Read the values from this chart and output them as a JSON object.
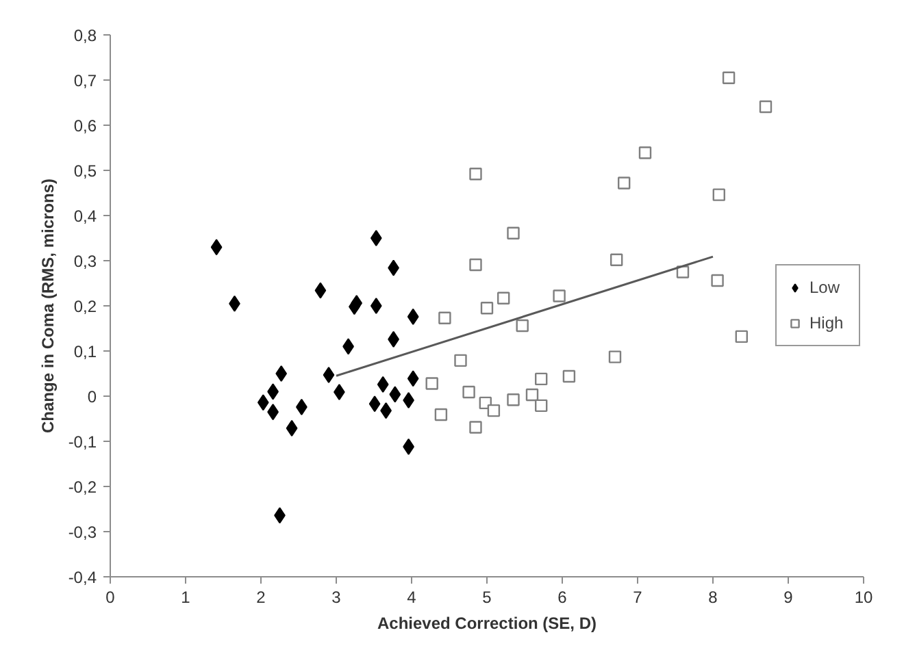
{
  "chart_data": {
    "type": "scatter",
    "xlabel": "Achieved Correction (SE, D)",
    "ylabel": "Change in Coma (RMS, microns)",
    "xlim": [
      0,
      10
    ],
    "xticks": [
      0,
      1,
      2,
      3,
      4,
      5,
      6,
      7,
      8,
      9,
      10
    ],
    "ylim": [
      -0.4,
      0.8
    ],
    "yticks": [
      {
        "value": -0.4,
        "label": "-0,4"
      },
      {
        "value": -0.3,
        "label": "-0,3"
      },
      {
        "value": -0.2,
        "label": "-0,2"
      },
      {
        "value": -0.1,
        "label": "-0,1"
      },
      {
        "value": 0,
        "label": "0"
      },
      {
        "value": 0.1,
        "label": "0,1"
      },
      {
        "value": 0.2,
        "label": "0,2"
      },
      {
        "value": 0.3,
        "label": "0,3"
      },
      {
        "value": 0.4,
        "label": "0,4"
      },
      {
        "value": 0.5,
        "label": "0,5"
      },
      {
        "value": 0.6,
        "label": "0,6"
      },
      {
        "value": 0.7,
        "label": "0,7"
      },
      {
        "value": 0.8,
        "label": "0,8"
      }
    ],
    "grid": false,
    "legend": "right",
    "series": [
      {
        "name": "Low",
        "marker": "diamond",
        "color": "#000000",
        "x": [
          1.41,
          1.65,
          2.27,
          2.16,
          2.03,
          2.16,
          2.54,
          2.41,
          2.25,
          2.79,
          2.9,
          3.04,
          3.16,
          3.24,
          3.27,
          3.53,
          3.53,
          3.51,
          3.62,
          3.66,
          3.76,
          3.76,
          3.78,
          3.96,
          3.96,
          4.02,
          4.02
        ],
        "values": [
          0.33,
          0.205,
          0.05,
          0.01,
          -0.014,
          -0.035,
          -0.024,
          -0.071,
          -0.264,
          0.234,
          0.047,
          0.009,
          0.11,
          0.198,
          0.206,
          0.35,
          0.2,
          -0.017,
          0.026,
          -0.032,
          0.284,
          0.126,
          0.004,
          -0.009,
          -0.112,
          0.176,
          0.039
        ]
      },
      {
        "name": "High",
        "marker": "square",
        "color": "#7f7f7f",
        "x": [
          4.27,
          4.39,
          4.44,
          4.65,
          4.76,
          4.85,
          4.85,
          4.85,
          4.98,
          5.0,
          5.09,
          5.22,
          5.35,
          5.35,
          5.47,
          5.6,
          5.72,
          5.72,
          5.96,
          6.09,
          6.7,
          6.72,
          6.82,
          7.1,
          7.6,
          8.06,
          8.08,
          8.21,
          8.38,
          8.7
        ],
        "values": [
          0.028,
          -0.041,
          0.173,
          0.079,
          0.009,
          0.492,
          0.291,
          -0.069,
          -0.015,
          0.195,
          -0.032,
          0.217,
          0.361,
          -0.008,
          0.156,
          0.003,
          0.038,
          -0.021,
          0.222,
          0.044,
          0.087,
          0.302,
          0.472,
          0.539,
          0.275,
          0.256,
          0.446,
          0.705,
          0.132,
          0.641
        ]
      },
      {
        "type": "line",
        "color": "#595959",
        "x": [
          3.0,
          8.0
        ],
        "values": [
          0.045,
          0.309
        ]
      }
    ]
  }
}
